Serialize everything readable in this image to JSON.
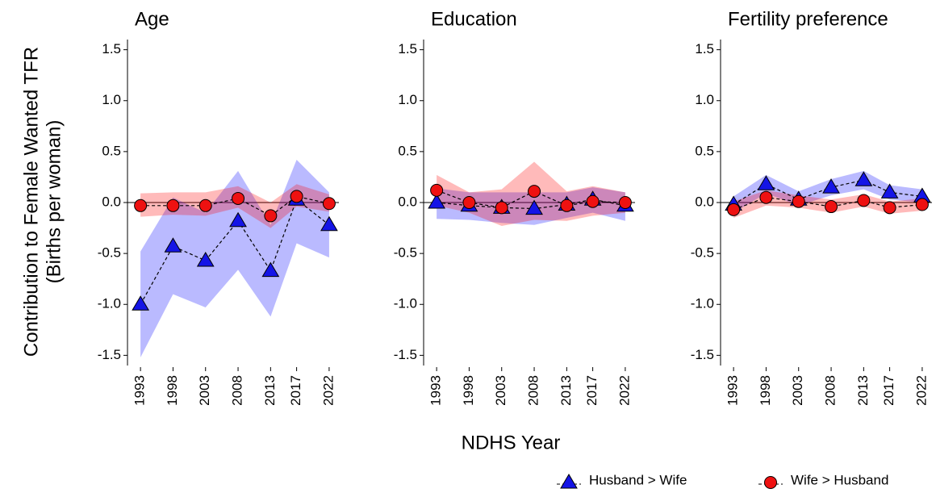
{
  "chart_data": [
    {
      "type": "line",
      "title": "Age",
      "x": [
        1993,
        1998,
        2003,
        2008,
        2013,
        2017,
        2022
      ],
      "xlim": [
        1991,
        2023.5
      ],
      "xticks": [
        1993,
        1998,
        2003,
        2008,
        2013,
        2017,
        2022
      ],
      "ylim": [
        -1.6,
        1.6
      ],
      "yticks": [
        {
          "value": -1.5,
          "label": "-1.5"
        },
        {
          "value": -1.0,
          "label": "-1.0"
        },
        -0.5,
        {
          "value": 0.0,
          "label": "0.0"
        },
        0.5,
        {
          "value": 1.0,
          "label": "1.0"
        },
        1.5
      ],
      "series": [
        {
          "name": "Husband > Wife",
          "marker": "triangle",
          "color": "#1414e6",
          "band_color": "#0000ff",
          "values": [
            -1.0,
            -0.43,
            -0.57,
            -0.18,
            -0.67,
            0.03,
            -0.22
          ],
          "lower": [
            -1.52,
            -0.9,
            -1.03,
            -0.66,
            -1.12,
            -0.4,
            -0.54
          ],
          "upper": [
            -0.48,
            0.05,
            -0.1,
            0.31,
            -0.22,
            0.42,
            0.1
          ]
        },
        {
          "name": "Wife > Husband",
          "marker": "circle",
          "color": "#ee1111",
          "band_color": "#ff0000",
          "values": [
            -0.03,
            -0.03,
            -0.03,
            0.04,
            -0.13,
            0.06,
            -0.01
          ],
          "lower": [
            -0.14,
            -0.12,
            -0.13,
            -0.05,
            -0.25,
            -0.04,
            -0.09
          ],
          "upper": [
            0.09,
            0.1,
            0.1,
            0.16,
            0.0,
            0.18,
            0.08
          ]
        }
      ]
    },
    {
      "type": "line",
      "title": "Education",
      "x": [
        1993,
        1998,
        2003,
        2008,
        2013,
        2017,
        2022
      ],
      "xlim": [
        1991,
        2023.5
      ],
      "xticks": [
        1993,
        1998,
        2003,
        2008,
        2013,
        2017,
        2022
      ],
      "ylim": [
        -1.6,
        1.6
      ],
      "yticks": [
        {
          "value": -1.5,
          "label": "-1.5"
        },
        {
          "value": -1.0,
          "label": "-1.0"
        },
        -0.5,
        {
          "value": 0.0,
          "label": "0.0"
        },
        0.5,
        {
          "value": 1.0,
          "label": "1.0"
        },
        1.5
      ],
      "series": [
        {
          "name": "Husband > Wife",
          "marker": "triangle",
          "color": "#1414e6",
          "band_color": "#0000ff",
          "values": [
            0.0,
            -0.03,
            -0.05,
            -0.06,
            -0.02,
            0.03,
            -0.03
          ],
          "lower": [
            -0.16,
            -0.17,
            -0.2,
            -0.22,
            -0.15,
            -0.1,
            -0.18
          ],
          "upper": [
            0.14,
            0.1,
            0.1,
            0.1,
            0.1,
            0.15,
            0.1
          ]
        },
        {
          "name": "Wife > Husband",
          "marker": "circle",
          "color": "#ee1111",
          "band_color": "#ff0000",
          "values": [
            0.12,
            0.0,
            -0.05,
            0.11,
            -0.03,
            0.01,
            0.0
          ],
          "lower": [
            -0.03,
            -0.1,
            -0.23,
            -0.17,
            -0.18,
            -0.13,
            -0.1
          ],
          "upper": [
            0.27,
            0.1,
            0.13,
            0.4,
            0.11,
            0.16,
            0.1
          ]
        }
      ]
    },
    {
      "type": "line",
      "title": "Fertility preference",
      "x": [
        1993,
        1998,
        2003,
        2008,
        2013,
        2017,
        2022
      ],
      "xlim": [
        1991,
        2023.5
      ],
      "xticks": [
        1993,
        1998,
        2003,
        2008,
        2013,
        2017,
        2022
      ],
      "ylim": [
        -1.6,
        1.6
      ],
      "yticks": [
        {
          "value": -1.5,
          "label": "-1.5"
        },
        {
          "value": -1.0,
          "label": "-1.0"
        },
        -0.5,
        {
          "value": 0.0,
          "label": "0.0"
        },
        0.5,
        {
          "value": 1.0,
          "label": "1.0"
        },
        1.5
      ],
      "series": [
        {
          "name": "Husband > Wife",
          "marker": "triangle",
          "color": "#1414e6",
          "band_color": "#0000ff",
          "values": [
            -0.02,
            0.18,
            0.03,
            0.15,
            0.22,
            0.1,
            0.06
          ],
          "lower": [
            -0.1,
            0.09,
            -0.03,
            0.07,
            0.13,
            0.03,
            0.0
          ],
          "upper": [
            0.06,
            0.27,
            0.11,
            0.23,
            0.31,
            0.17,
            0.13
          ]
        },
        {
          "name": "Wife > Husband",
          "marker": "circle",
          "color": "#ee1111",
          "band_color": "#ff0000",
          "values": [
            -0.07,
            0.05,
            0.01,
            -0.04,
            0.02,
            -0.05,
            -0.02
          ],
          "lower": [
            -0.15,
            -0.03,
            -0.05,
            -0.1,
            -0.04,
            -0.11,
            -0.08
          ],
          "upper": [
            0.01,
            0.12,
            0.07,
            0.03,
            0.08,
            0.01,
            0.04
          ]
        }
      ]
    }
  ],
  "ylabel": [
    "Contribution to Female Wanted TFR",
    "(Births per woman)"
  ],
  "xlabel": "NDHS Year"
}
